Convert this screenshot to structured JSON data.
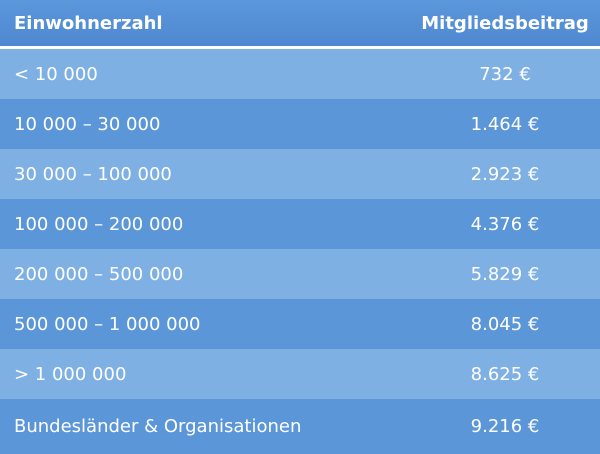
{
  "header": {
    "col1": "Einwohnerzahl",
    "col2": "Mitgliedsbeitrag"
  },
  "rows": [
    {
      "range": "< 10 000",
      "fee": "732 €"
    },
    {
      "range": "10 000 – 30 000",
      "fee": "1.464 €"
    },
    {
      "range": "30 000 – 100 000",
      "fee": "2.923 €"
    },
    {
      "range": "100 000 – 200 000",
      "fee": "4.376 €"
    },
    {
      "range": "200 000 – 500 000",
      "fee": "5.829 €"
    },
    {
      "range": "500 000 – 1 000 000",
      "fee": "8.045 €"
    },
    {
      "range": "> 1 000 000",
      "fee": "8.625 €"
    },
    {
      "range": "Bundesländer & Organisationen",
      "fee": "9.216 €"
    }
  ]
}
